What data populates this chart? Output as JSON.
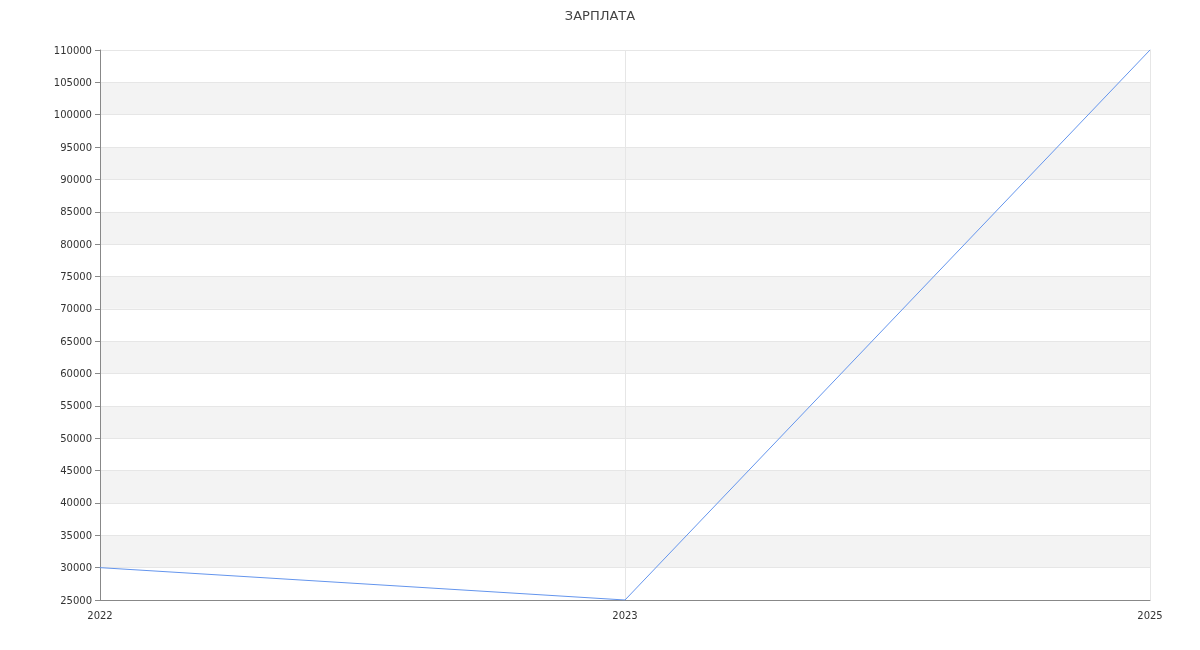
{
  "chart_data": {
    "type": "line",
    "title": "ЗАРПЛАТА",
    "categories": [
      "2022",
      "2023",
      "2025"
    ],
    "series": [
      {
        "color": "#6495ed",
        "values": [
          30000,
          25000,
          110000
        ]
      }
    ],
    "ylim": [
      25000,
      110000
    ],
    "yticks": [
      25000,
      30000,
      35000,
      40000,
      45000,
      50000,
      55000,
      60000,
      65000,
      70000,
      75000,
      80000,
      85000,
      90000,
      95000,
      100000,
      105000,
      110000
    ],
    "grid": true,
    "marker": "none",
    "line_style": "solid"
  }
}
